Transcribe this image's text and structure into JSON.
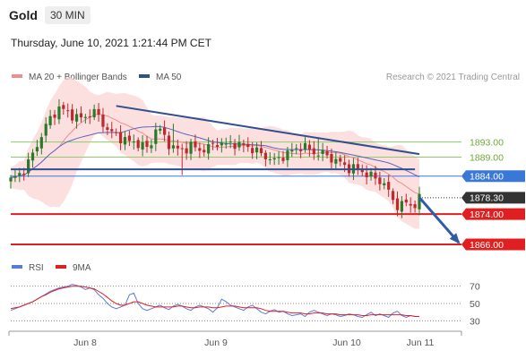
{
  "header": {
    "title": "Gold",
    "timeframe": "30 MIN",
    "timestamp": "Thursday, June 10, 2021 1:21:44 PM CET"
  },
  "legend": {
    "bollinger": "MA 20 + Bollinger Bands",
    "ma50": "MA 50",
    "credit": "Research © 2021 Trading Central",
    "rsi": "RSI",
    "ma9": "9MA"
  },
  "colors": {
    "candle_up": "#2a7a2a",
    "candle_down": "#c0282c",
    "bollinger_fill": "#fbd6d6",
    "ma20": "#f08c8c",
    "ma50": "#5566c0",
    "trendline": "#2f4f8f",
    "support": "#e02020",
    "resistance": "#8ccc6c",
    "pivot": "#3a78d8",
    "rsi": "#5a7adc",
    "rsi_ma9": "#e02020",
    "current_price": "#333333"
  },
  "chart_data": [
    {
      "type": "candlestick",
      "title": "Gold",
      "x_tick_labels": [
        "Jun 8",
        "Jun 9",
        "Jun 10",
        "Jun 11"
      ],
      "ylim": [
        1862,
        1908
      ],
      "levels": [
        {
          "label": "1893.00",
          "value": 1893.0,
          "kind": "resistance"
        },
        {
          "label": "1889.00",
          "value": 1889.0,
          "kind": "resistance"
        },
        {
          "label": "1884.00",
          "value": 1884.0,
          "kind": "pivot"
        },
        {
          "label": "1878.30",
          "value": 1878.3,
          "kind": "current"
        },
        {
          "label": "1874.00",
          "value": 1874.0,
          "kind": "support"
        },
        {
          "label": "1866.00",
          "value": 1866.0,
          "kind": "support"
        }
      ],
      "close_path": [
        1883,
        1884,
        1886,
        1889,
        1893,
        1897,
        1900,
        1902,
        1901,
        1900,
        1899,
        1900,
        1901,
        1899,
        1896,
        1895,
        1894,
        1893,
        1893,
        1892,
        1891,
        1897,
        1895,
        1892,
        1891,
        1891,
        1892,
        1891,
        1891,
        1892,
        1893,
        1892,
        1893,
        1892,
        1892,
        1891,
        1890,
        1889,
        1888,
        1889,
        1890,
        1891,
        1892,
        1891,
        1890,
        1890,
        1889,
        1888,
        1887,
        1886,
        1886,
        1885,
        1884,
        1883,
        1882,
        1878,
        1876,
        1877,
        1876,
        1878
      ],
      "trendlines": [
        {
          "from_bar": 24,
          "to_bar": 93,
          "from_value": 1902.5,
          "to_value": 1889.8
        },
        {
          "from_bar": 0,
          "to_bar": 92,
          "from_value": 1885.8,
          "to_value": 1885.8
        }
      ],
      "projection_to": 1866.0
    },
    {
      "type": "line",
      "title": "RSI",
      "y_tick_labels": [
        "70",
        "50",
        "30"
      ],
      "ylim": [
        20,
        80
      ],
      "reference_lines": [
        70,
        50,
        30
      ],
      "series": [
        {
          "name": "RSI",
          "values": [
            42,
            44,
            46,
            48,
            50,
            52,
            55,
            58,
            61,
            64,
            66,
            68,
            69,
            70,
            72,
            71,
            69,
            66,
            68,
            66,
            60,
            56,
            50,
            46,
            44,
            46,
            48,
            60,
            62,
            50,
            44,
            42,
            44,
            46,
            48,
            45,
            43,
            47,
            49,
            47,
            44,
            42,
            46,
            48,
            46,
            44,
            40,
            45,
            55,
            52,
            48,
            46,
            44,
            42,
            46,
            48,
            44,
            40,
            38,
            41,
            43,
            40,
            41,
            38,
            36,
            37,
            38,
            35,
            40,
            42,
            40,
            38,
            36,
            38,
            37,
            35,
            36,
            38,
            37,
            35,
            34,
            37,
            40,
            36,
            38,
            36,
            34,
            39,
            41,
            36,
            34,
            36,
            35,
            35
          ]
        },
        {
          "name": "9MA",
          "values": [
            44,
            45,
            46,
            48,
            50,
            52,
            55,
            58,
            60,
            63,
            65,
            67,
            68,
            69,
            70,
            70,
            70,
            69,
            68,
            67,
            64,
            61,
            57,
            53,
            50,
            48,
            48,
            50,
            52,
            52,
            50,
            48,
            47,
            46,
            46,
            46,
            46,
            46,
            47,
            47,
            46,
            45,
            45,
            46,
            46,
            46,
            45,
            45,
            46,
            47,
            47,
            47,
            46,
            45,
            45,
            45,
            45,
            44,
            42,
            41,
            41,
            41,
            41,
            40,
            39,
            39,
            39,
            38,
            38,
            39,
            39,
            39,
            38,
            38,
            38,
            37,
            37,
            37,
            37,
            37,
            36,
            36,
            37,
            37,
            37,
            37,
            37,
            37,
            37,
            37,
            36,
            36,
            35,
            35
          ]
        }
      ]
    }
  ]
}
